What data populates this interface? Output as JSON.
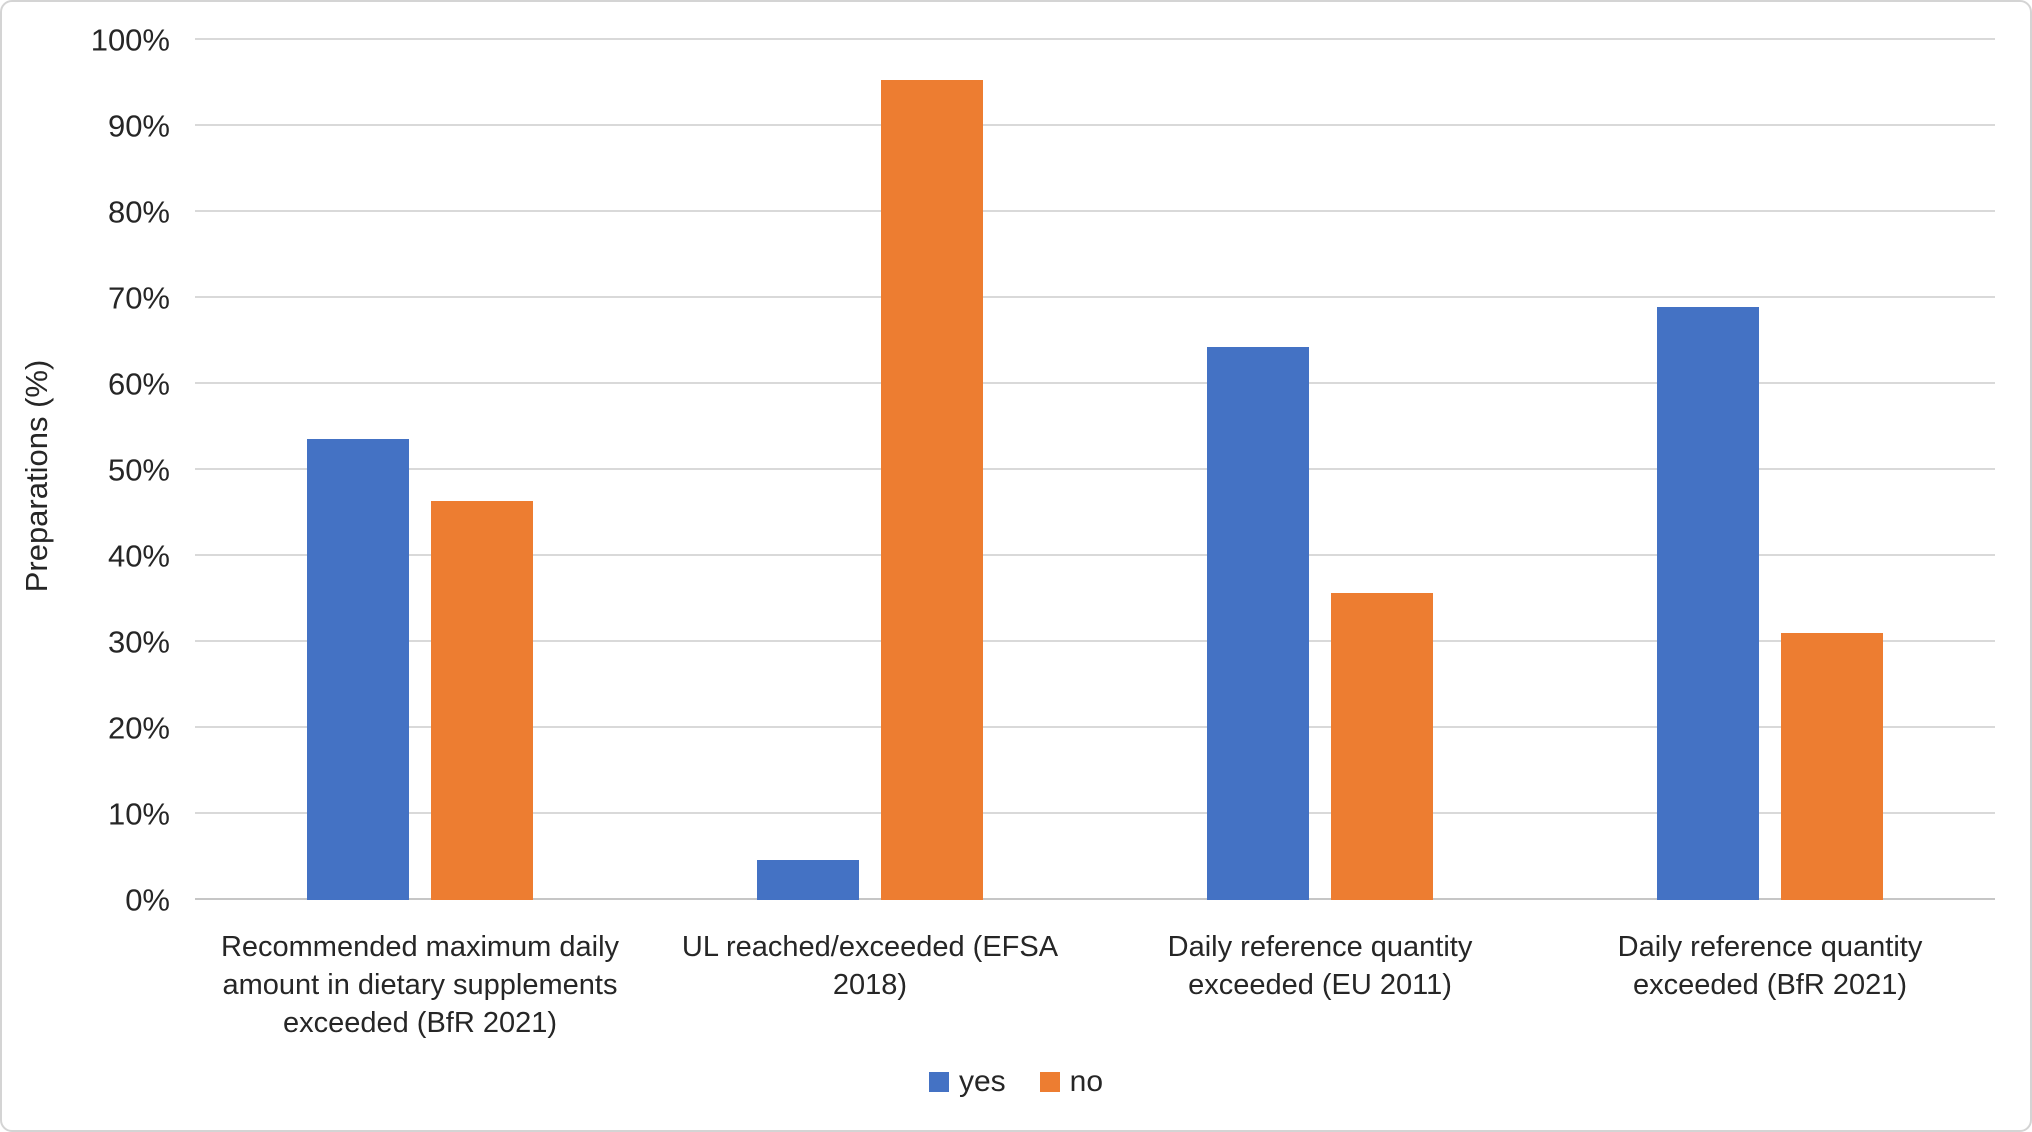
{
  "chart_data": {
    "type": "bar",
    "categories": [
      "Recommended maximum daily amount in dietary supplements exceeded (BfR 2021)",
      "UL reached/exceeded (EFSA 2018)",
      "Daily reference quantity exceeded (EU 2011)",
      "Daily reference quantity exceeded (BfR 2021)"
    ],
    "series": [
      {
        "name": "yes",
        "color": "#4472C4",
        "values": [
          53.6,
          4.6,
          64.3,
          69.0
        ]
      },
      {
        "name": "no",
        "color": "#ED7D31",
        "values": [
          46.4,
          95.4,
          35.7,
          31.0
        ]
      }
    ],
    "title": "",
    "xlabel": "",
    "ylabel": "Preparations (%)",
    "ylim": [
      0,
      100
    ],
    "yticks": [
      "0%",
      "10%",
      "20%",
      "30%",
      "40%",
      "50%",
      "60%",
      "70%",
      "80%",
      "90%",
      "100%"
    ],
    "grid": "horizontal",
    "legend_position": "bottom"
  }
}
